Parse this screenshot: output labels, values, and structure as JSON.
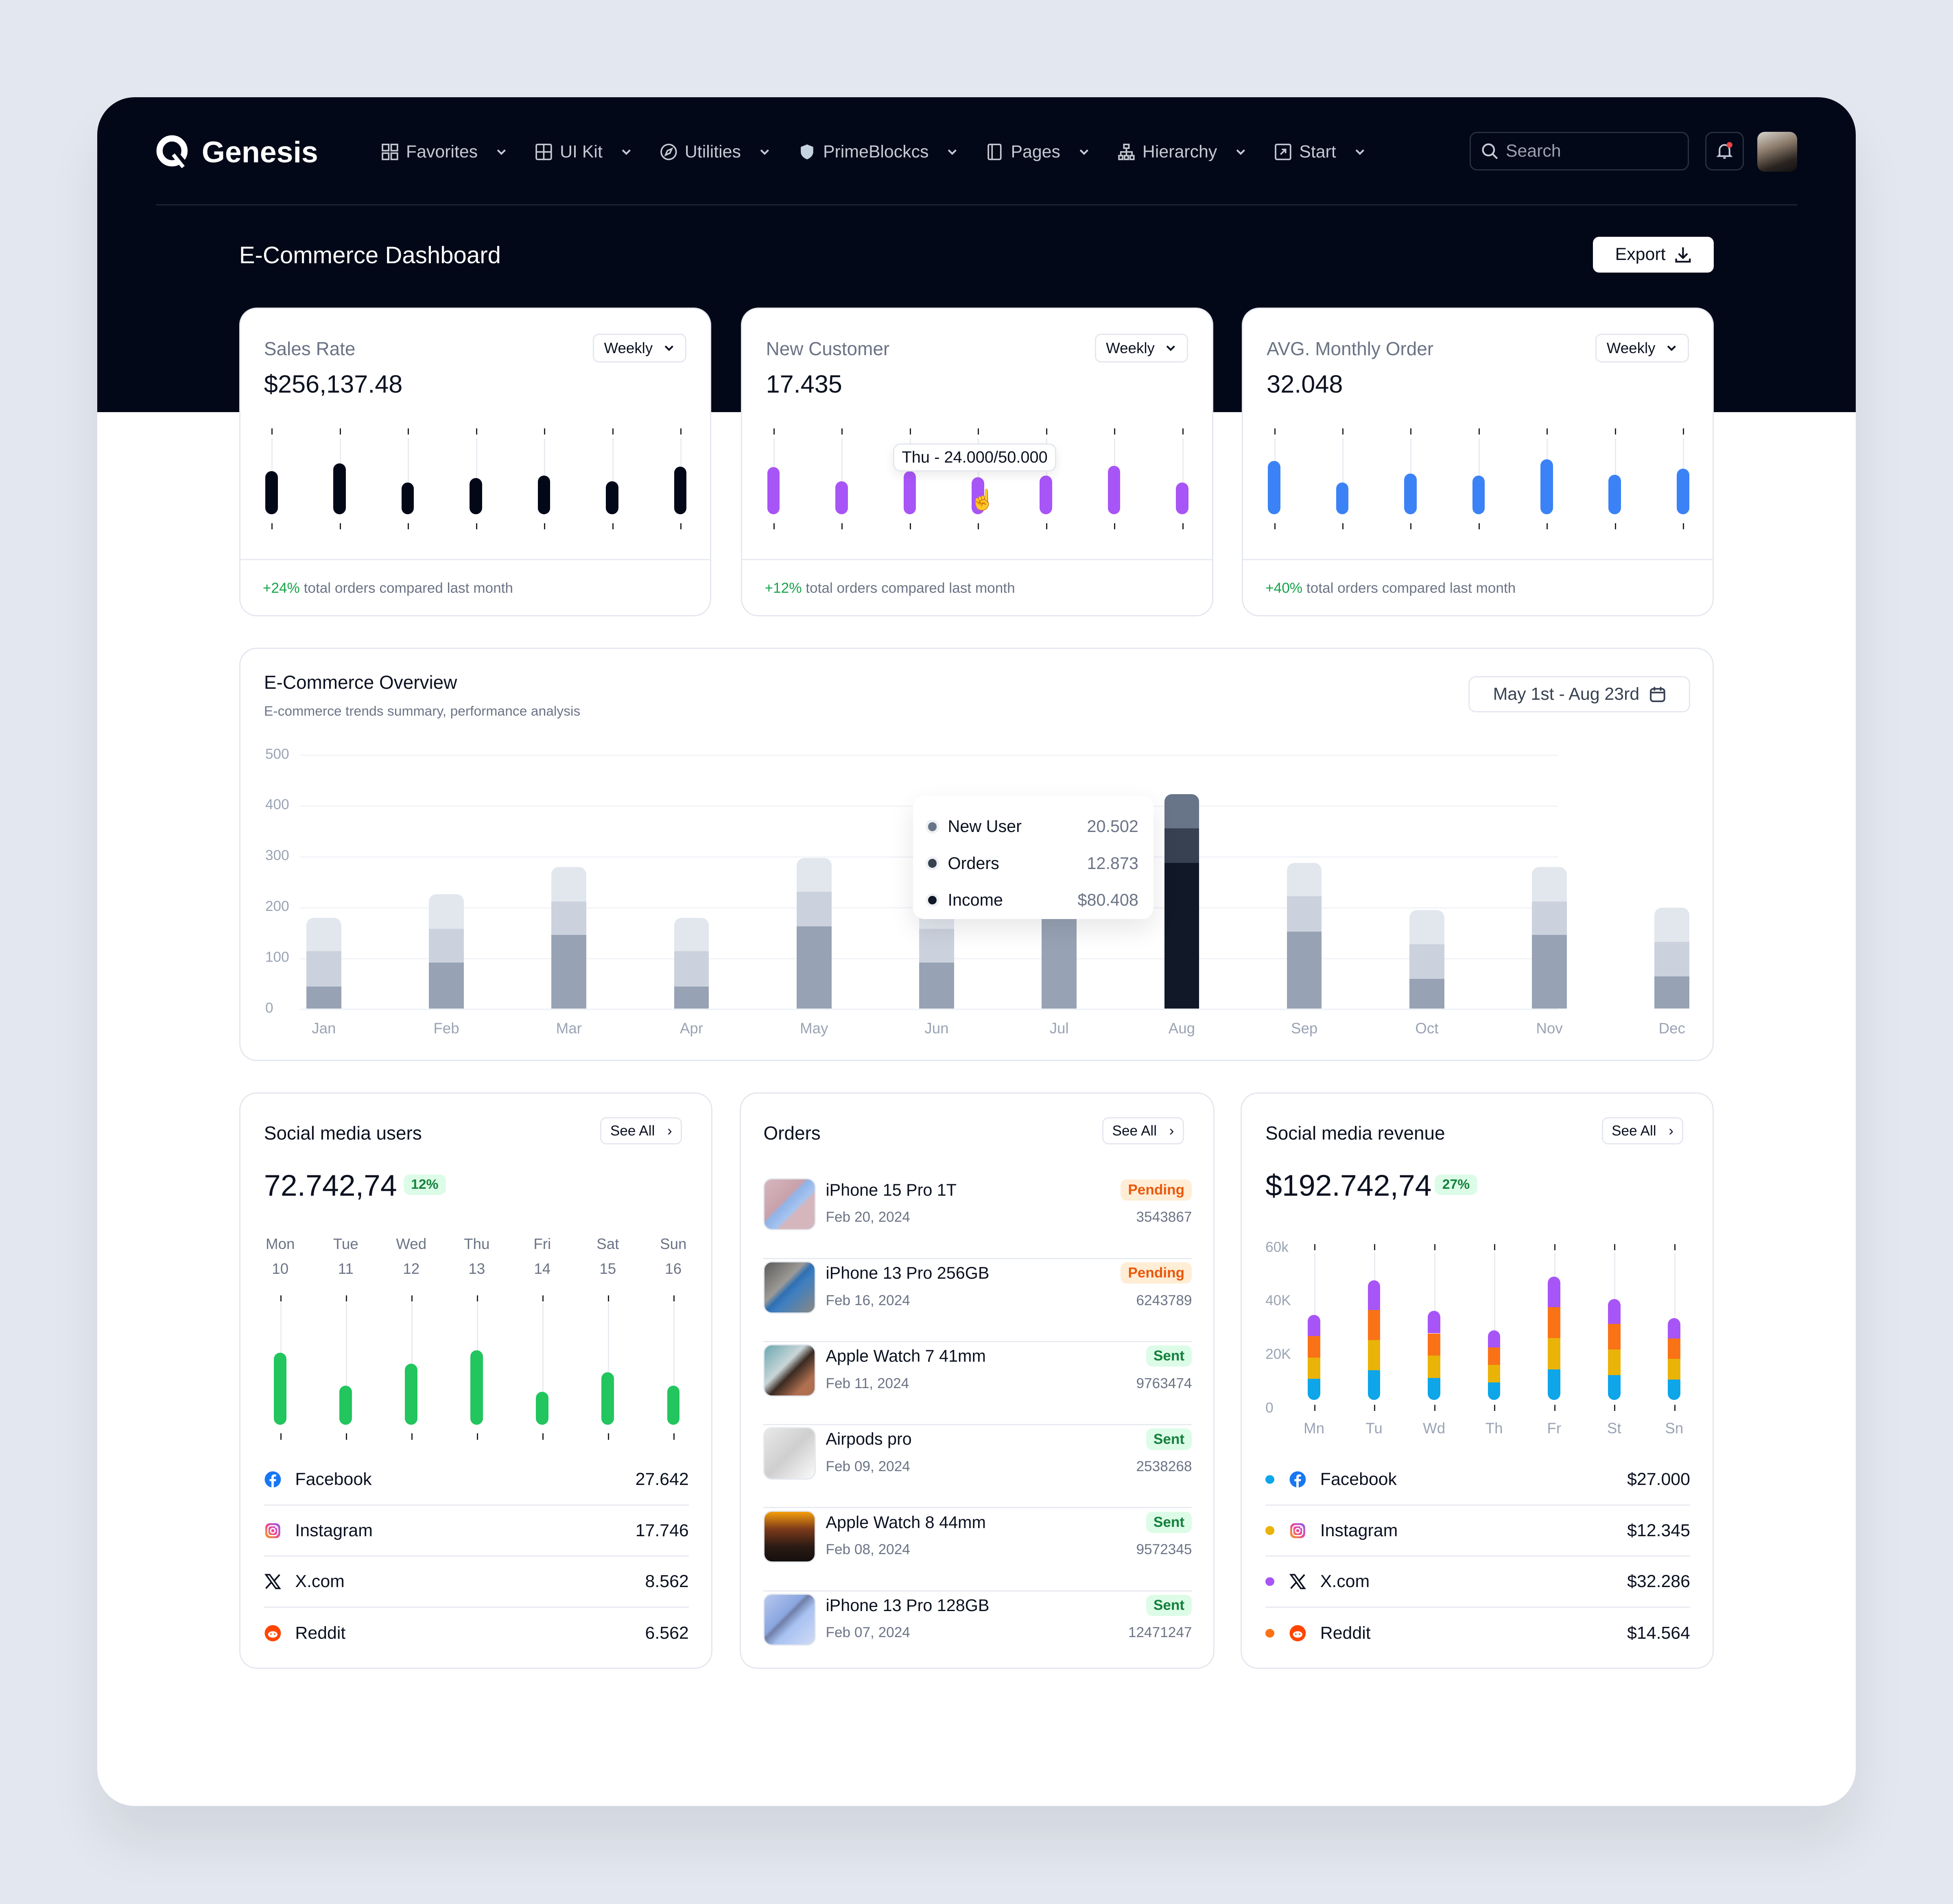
{
  "app": {
    "name": "Genesis",
    "page_title": "E-Commerce Dashboard",
    "export_label": "Export"
  },
  "nav": [
    {
      "label": "Favorites",
      "icon": "grid-icon"
    },
    {
      "label": "UI Kit",
      "icon": "table-icon"
    },
    {
      "label": "Utilities",
      "icon": "compass-icon"
    },
    {
      "label": "PrimeBlockcs",
      "icon": "shield-icon"
    },
    {
      "label": "Pages",
      "icon": "page-icon"
    },
    {
      "label": "Hierarchy",
      "icon": "hierarchy-icon"
    },
    {
      "label": "Start",
      "icon": "start-icon"
    }
  ],
  "search": {
    "placeholder": "Search"
  },
  "colors": {
    "dark": "#030818",
    "purple": "#a855f7",
    "blue": "#3b82f6",
    "green": "#22c55e",
    "facebook": "#0ea5e9",
    "instagram": "#eab308",
    "x": "#a855f7",
    "reddit": "#f97316"
  },
  "kpis": [
    {
      "title": "Sales Rate",
      "value": "$256,137.48",
      "period": "Weekly",
      "change": "+24%",
      "note": "total orders compared last month",
      "color": "#030818",
      "values": [
        28,
        33,
        20.5,
        23.5,
        25,
        21.5,
        31
      ],
      "max": 50
    },
    {
      "title": "New Customer",
      "value": "17.435",
      "period": "Weekly",
      "change": "+12%",
      "note": "total orders compared last month",
      "color": "#a855f7",
      "values": [
        30.5,
        21.5,
        28,
        24,
        25,
        31.5,
        20.5
      ],
      "max": 50,
      "tooltip": "Thu - 24.000/50.000",
      "tooltip_index": 3
    },
    {
      "title": "AVG. Monthly Order",
      "value": "32.048",
      "period": "Weekly",
      "change": "+40%",
      "note": "total orders compared last month",
      "color": "#3b82f6",
      "values": [
        34.5,
        20.5,
        26.5,
        25,
        35.5,
        25.5,
        29.5
      ],
      "max": 50
    }
  ],
  "overview": {
    "title": "E-Commerce Overview",
    "subtitle": "E-commerce trends summary, performance analysis",
    "date_range": "May 1st - Aug 23rd",
    "tooltip": [
      {
        "label": "New User",
        "value": "20.502",
        "color": "#687589"
      },
      {
        "label": "Orders",
        "value": "12.873",
        "color": "#374151"
      },
      {
        "label": "Income",
        "value": "$80.408",
        "color": "#111827"
      }
    ]
  },
  "chart_data": [
    {
      "type": "bar",
      "stacked": true,
      "grid": true,
      "categories": [
        "Jan",
        "Feb",
        "Mar",
        "Apr",
        "May",
        "Jun",
        "Jul",
        "Aug",
        "Sep",
        "Oct",
        "Nov",
        "Dec"
      ],
      "ylim": [
        0,
        500
      ],
      "yticks": [
        0,
        100,
        200,
        300,
        400,
        500
      ],
      "highlight": "Aug",
      "series": [
        {
          "name": "Income",
          "values": [
            44,
            91,
            145,
            44,
            162,
            91,
            180,
            287,
            152,
            59,
            145,
            64
          ]
        },
        {
          "name": "Orders",
          "values": [
            69,
            66,
            66,
            69,
            68,
            66,
            50,
            68,
            69,
            68,
            66,
            68
          ]
        },
        {
          "name": "New User",
          "values": [
            66,
            68,
            68,
            66,
            67,
            68,
            40,
            67,
            66,
            67,
            68,
            67
          ]
        }
      ]
    },
    {
      "type": "bar",
      "stacked": true,
      "categories": [
        "Mn",
        "Tu",
        "Wd",
        "Th",
        "Fr",
        "St",
        "Sn"
      ],
      "ylim": [
        0,
        60
      ],
      "yticks": [
        "0",
        "20K",
        "40K",
        "60k"
      ],
      "series": [
        {
          "name": "Facebook",
          "values": [
            7.9,
            11,
            8.2,
            6.5,
            11.4,
            9.3,
            7.5
          ]
        },
        {
          "name": "Instagram",
          "values": [
            7.9,
            11.3,
            8.3,
            6.5,
            11.6,
            9.5,
            7.8
          ]
        },
        {
          "name": "Reddit",
          "values": [
            8,
            11.2,
            8.3,
            6.5,
            11.6,
            9.5,
            7.6
          ]
        },
        {
          "name": "X.com",
          "values": [
            7.9,
            11.2,
            8.4,
            6.5,
            11.4,
            9.4,
            7.6
          ]
        }
      ]
    }
  ],
  "social_users": {
    "title": "Social media users",
    "see_all": "See All",
    "value": "72.742,74",
    "change": "12%",
    "days": [
      {
        "d": "Mon",
        "n": "10"
      },
      {
        "d": "Tue",
        "n": "11"
      },
      {
        "d": "Wed",
        "n": "12"
      },
      {
        "d": "Thu",
        "n": "13"
      },
      {
        "d": "Fri",
        "n": "14"
      },
      {
        "d": "Sat",
        "n": "15"
      },
      {
        "d": "Sun",
        "n": "16"
      }
    ],
    "levels": [
      59,
      32,
      50,
      61,
      27,
      43,
      32
    ],
    "list": [
      {
        "label": "Facebook",
        "value": "27.642",
        "icon": "facebook-icon"
      },
      {
        "label": "Instagram",
        "value": "17.746",
        "icon": "instagram-icon"
      },
      {
        "label": "X.com",
        "value": "8.562",
        "icon": "x-icon"
      },
      {
        "label": "Reddit",
        "value": "6.562",
        "icon": "reddit-icon"
      }
    ]
  },
  "orders": {
    "title": "Orders",
    "see_all": "See All",
    "items": [
      {
        "name": "iPhone 15 Pro 1T",
        "date": "Feb 20, 2024",
        "status": "Pending",
        "id": "3543867"
      },
      {
        "name": "iPhone 13 Pro 256GB",
        "date": "Feb 16, 2024",
        "status": "Pending",
        "id": "6243789"
      },
      {
        "name": "Apple Watch 7 41mm",
        "date": "Feb 11, 2024",
        "status": "Sent",
        "id": "9763474"
      },
      {
        "name": "Airpods pro",
        "date": "Feb 09, 2024",
        "status": "Sent",
        "id": "2538268"
      },
      {
        "name": "Apple Watch 8 44mm",
        "date": "Feb 08, 2024",
        "status": "Sent",
        "id": "9572345"
      },
      {
        "name": "iPhone 13 Pro 128GB",
        "date": "Feb 07, 2024",
        "status": "Sent",
        "id": "12471247"
      }
    ]
  },
  "social_revenue": {
    "title": "Social media revenue",
    "see_all": "See All",
    "value": "$192.742,74",
    "change": "27%",
    "list": [
      {
        "label": "Facebook",
        "value": "$27.000",
        "color": "#0ea5e9",
        "icon": "facebook-icon"
      },
      {
        "label": "Instagram",
        "value": "$12.345",
        "color": "#eab308",
        "icon": "instagram-icon"
      },
      {
        "label": "X.com",
        "value": "$32.286",
        "color": "#a855f7",
        "icon": "x-icon"
      },
      {
        "label": "Reddit",
        "value": "$14.564",
        "color": "#f97316",
        "icon": "reddit-icon"
      }
    ]
  }
}
